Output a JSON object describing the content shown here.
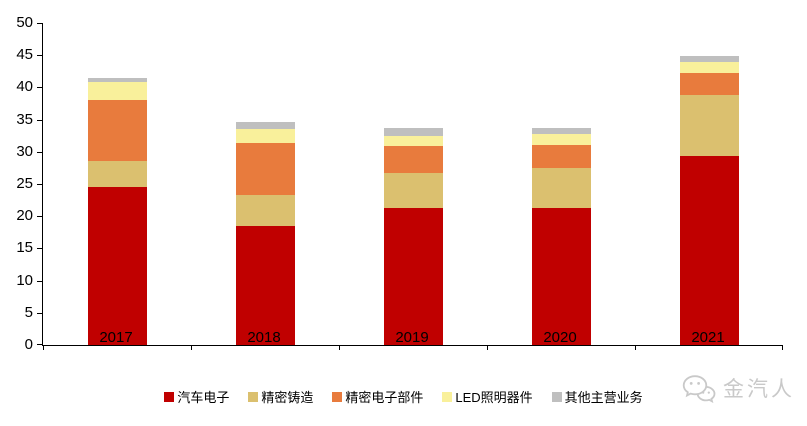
{
  "chart_data": {
    "type": "bar",
    "stacked": true,
    "title": "",
    "xlabel": "",
    "ylabel": "",
    "categories": [
      "2017",
      "2018",
      "2019",
      "2020",
      "2021"
    ],
    "series": [
      {
        "name": "汽车电子",
        "color": "#C00000",
        "values": [
          24.6,
          18.5,
          21.2,
          21.2,
          29.4
        ]
      },
      {
        "name": "精密铸造",
        "color": "#DBC06F",
        "values": [
          4.0,
          4.8,
          5.5,
          6.3,
          9.4
        ]
      },
      {
        "name": "精密电子部件",
        "color": "#E87B3D",
        "values": [
          9.5,
          8.1,
          4.2,
          3.6,
          3.4
        ]
      },
      {
        "name": "LED照明器件",
        "color": "#F9F09B",
        "values": [
          2.7,
          2.2,
          1.6,
          1.7,
          1.8
        ]
      },
      {
        "name": "其他主营业务",
        "color": "#BFBFBF",
        "values": [
          0.7,
          1.1,
          1.2,
          0.9,
          0.9
        ]
      }
    ],
    "totals": [
      41.5,
      34.7,
      33.7,
      33.7,
      44.9
    ],
    "ylim": [
      0,
      50
    ],
    "yticks": [
      0,
      5,
      10,
      15,
      20,
      25,
      30,
      35,
      40,
      45,
      50
    ],
    "grid": false,
    "legend_position": "bottom"
  },
  "watermark": {
    "text": "金汽人",
    "icon": "wechat-icon",
    "color": "#C9C9C9"
  }
}
